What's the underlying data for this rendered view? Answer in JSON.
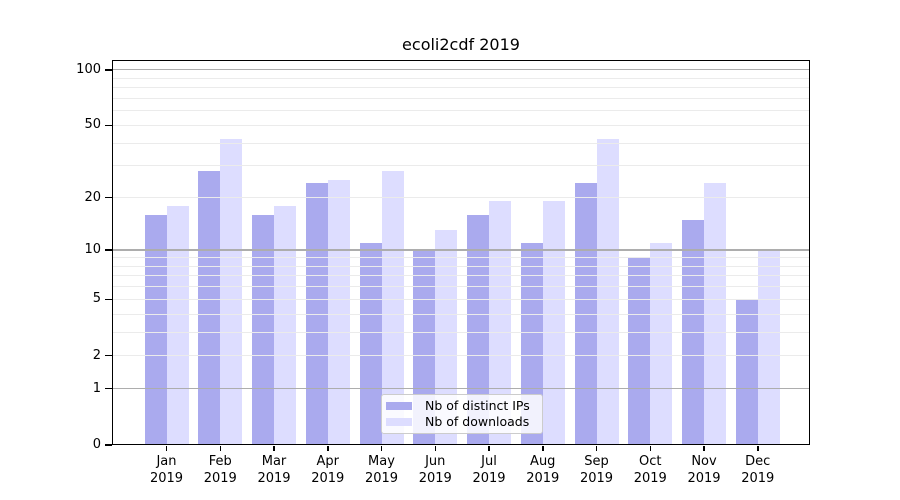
{
  "title": "ecoli2cdf 2019",
  "chart_data": {
    "type": "bar",
    "title": "ecoli2cdf 2019",
    "categories": [
      "Jan 2019",
      "Feb 2019",
      "Mar 2019",
      "Apr 2019",
      "May 2019",
      "Jun 2019",
      "Jul 2019",
      "Aug 2019",
      "Sep 2019",
      "Oct 2019",
      "Nov 2019",
      "Dec 2019"
    ],
    "series": [
      {
        "name": "Nb of distinct IPs",
        "color": "#aaaaee",
        "values": [
          16,
          28,
          16,
          24,
          11,
          10,
          16,
          11,
          24,
          9,
          15,
          5
        ]
      },
      {
        "name": "Nb of downloads",
        "color": "#ddddff",
        "values": [
          18,
          42,
          18,
          25,
          28,
          13,
          19,
          19,
          42,
          11,
          24,
          10
        ]
      }
    ],
    "xlabel": "",
    "ylabel": "",
    "y_scale": "log10(1+value)",
    "ylim": [
      0,
      113
    ],
    "y_ticks": [
      0,
      1,
      2,
      5,
      10,
      20,
      50,
      100
    ],
    "y_gridlines_minor": [
      2,
      3,
      4,
      5,
      6,
      7,
      8,
      9,
      20,
      30,
      40,
      50,
      60,
      70,
      80,
      90
    ],
    "y_gridlines_major": [
      1,
      10,
      100
    ],
    "grid": true,
    "legend_position": "inside-bottom-center"
  },
  "legend": {
    "items": [
      {
        "label": "Nb of distinct IPs",
        "color": "#aaaaee"
      },
      {
        "label": "Nb of downloads",
        "color": "#ddddff"
      }
    ]
  },
  "colors": {
    "bar_ips": "#aaaaee",
    "bar_downloads": "#ddddff",
    "grid_minor": "#ebebeb",
    "grid_major": "#adadad",
    "axis": "#000000",
    "text": "#000000",
    "background": "#ffffff"
  }
}
